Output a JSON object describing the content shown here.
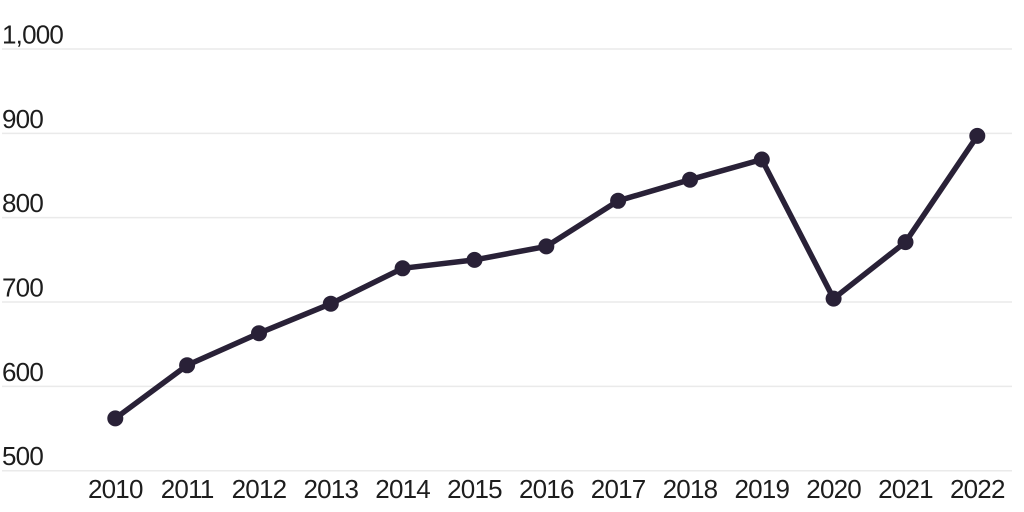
{
  "chart_data": {
    "type": "line",
    "x": [
      "2010",
      "2011",
      "2012",
      "2013",
      "2014",
      "2015",
      "2016",
      "2017",
      "2018",
      "2019",
      "2020",
      "2021",
      "2022"
    ],
    "series": [
      {
        "values": [
          562,
          625,
          663,
          698,
          740,
          750,
          766,
          820,
          845,
          869,
          704,
          771,
          897
        ]
      }
    ],
    "title": "",
    "xlabel": "",
    "ylabel": "",
    "ylim": [
      500,
      1000
    ],
    "yticks": [
      500,
      600,
      700,
      800,
      900,
      1000
    ],
    "ytick_labels": [
      "500",
      "600",
      "700",
      "800",
      "900",
      "1,000"
    ],
    "grid": true,
    "legend_position": "none",
    "marker": "circle"
  },
  "colors": {
    "background": "#ffffff",
    "line": "#292137",
    "marker": "#292137",
    "gridline": "#eaeaea",
    "tick_text": "#1d1d1d"
  }
}
